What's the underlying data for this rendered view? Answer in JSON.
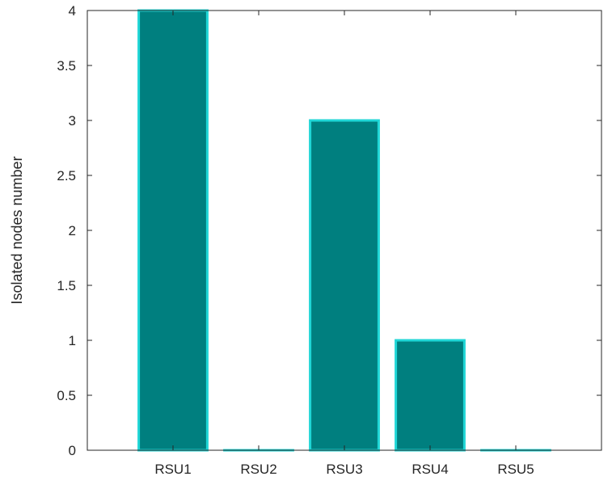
{
  "chart_data": {
    "type": "bar",
    "categories": [
      "RSU1",
      "RSU2",
      "RSU3",
      "RSU4",
      "RSU5"
    ],
    "values": [
      4,
      0,
      3,
      1,
      0
    ],
    "title": "",
    "xlabel": "",
    "ylabel": "Isolated nodes number",
    "ylim": [
      0,
      4
    ],
    "yticks": [
      0,
      0.5,
      1,
      1.5,
      2,
      2.5,
      3,
      3.5,
      4
    ],
    "ytick_labels": [
      "0",
      "0.5",
      "1",
      "1.5",
      "2",
      "2.5",
      "3",
      "3.5",
      "4"
    ],
    "grid": false,
    "legend": "none",
    "colors": {
      "bar_fill": "#007f7f",
      "bar_edge": "#1fd6d6",
      "axis": "#262626",
      "text": "#262626"
    }
  }
}
